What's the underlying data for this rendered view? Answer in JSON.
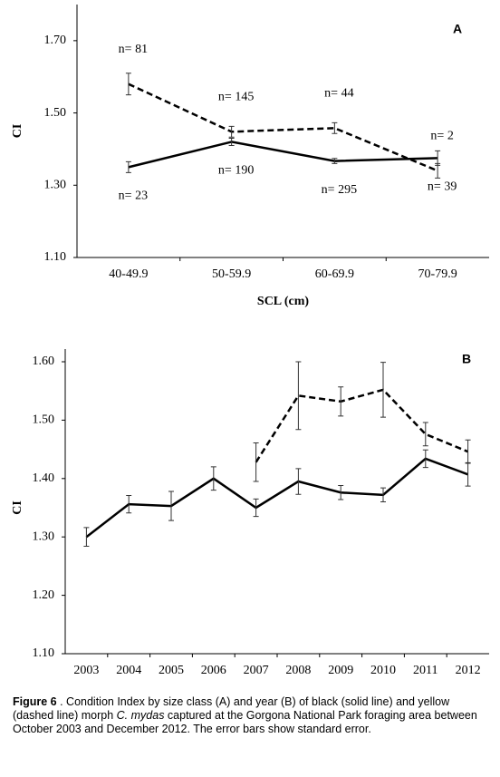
{
  "chart_data": [
    {
      "type": "line",
      "label": "A",
      "xlabel": "SCL (cm)",
      "ylabel": "CI",
      "categories": [
        "40-49.9",
        "50-59.9",
        "60-69.9",
        "70-79.9"
      ],
      "ylim": [
        1.1,
        1.8
      ],
      "yticks": [
        {
          "value": 1.1,
          "label": "1.10"
        },
        {
          "value": 1.3,
          "label": "1.30"
        },
        {
          "value": 1.5,
          "label": "1.50"
        },
        {
          "value": 1.7,
          "label": "1.70"
        }
      ],
      "series": [
        {
          "color": "#000000",
          "style": "solid",
          "values": [
            1.35,
            1.42,
            1.367,
            1.375
          ],
          "errors": [
            0.015,
            0.01,
            0.007,
            0.02
          ],
          "labels": [
            "n= 23",
            "n= 190",
            "n= 295",
            "n= 39"
          ]
        },
        {
          "color": "#000000",
          "style": "dashed",
          "values": [
            1.58,
            1.448,
            1.458,
            1.34
          ],
          "errors": [
            0.03,
            0.015,
            0.015,
            0.02
          ],
          "labels": [
            "n= 81",
            "n= 145",
            "n= 44",
            "n= 2"
          ]
        }
      ]
    },
    {
      "type": "line",
      "label": "B",
      "ylabel": "CI",
      "categories": [
        "2003",
        "2004",
        "2005",
        "2006",
        "2007",
        "2008",
        "2009",
        "2010",
        "2011",
        "2012"
      ],
      "ylim": [
        1.1,
        1.6
      ],
      "yticks": [
        {
          "value": 1.1,
          "label": "1.10"
        },
        {
          "value": 1.2,
          "label": "1.20"
        },
        {
          "value": 1.3,
          "label": "1.30"
        },
        {
          "value": 1.4,
          "label": "1.40"
        },
        {
          "value": 1.5,
          "label": "1.50"
        },
        {
          "value": 1.6,
          "label": "1.60"
        }
      ],
      "series": [
        {
          "color": "#000000",
          "style": "solid",
          "values": [
            1.3,
            1.356,
            1.353,
            1.4,
            1.35,
            1.395,
            1.376,
            1.372,
            1.434,
            1.407
          ],
          "errors": [
            0.016,
            0.015,
            0.025,
            0.02,
            0.015,
            0.022,
            0.012,
            0.012,
            0.015,
            0.02
          ]
        },
        {
          "color": "#000000",
          "style": "dashed",
          "values": [
            null,
            null,
            null,
            null,
            1.428,
            1.542,
            1.532,
            1.552,
            1.476,
            1.446
          ],
          "errors": [
            null,
            null,
            null,
            null,
            0.033,
            0.058,
            0.025,
            0.047,
            0.02,
            0.02
          ]
        }
      ]
    }
  ],
  "caption": {
    "label": "Figure 6",
    "text_before": " . Condition Index by size class (A) and year (B) of black (solid line) and yellow (dashed line) morph ",
    "species": "C. mydas",
    "text_after": " captured at the Gorgona National Park foraging area between October 2003 and December 2012. The error bars show standard error."
  }
}
